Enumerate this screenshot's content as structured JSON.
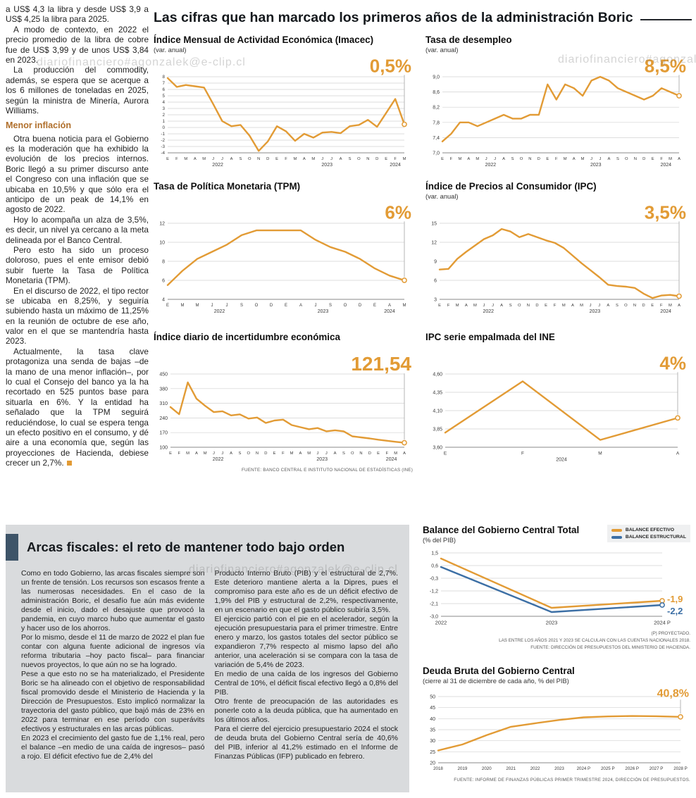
{
  "meta": {
    "watermark": "diariofinanciero#agonzalek@e-clip.cl"
  },
  "colors": {
    "orange": "#e29b35",
    "blue": "#3c6fa5",
    "heading_brown": "#b06f2b",
    "accent_dark": "#3e5468",
    "box_gray": "#d9dbdd"
  },
  "headline": "Las cifras que han marcado los primeros años de la administración Boric",
  "left_article": {
    "paragraphs_top": [
      "a US$ 4,3 la libra y desde US$ 3,9 a US$ 4,25 la libra para 2025.",
      "A modo de contexto, en 2022 el precio promedio de la libra de cobre fue de US$ 3,99 y de unos US$ 3,84 en 2023.",
      "La producción del commodity, además, se espera que se acerque a los 6 millones de toneladas en 2025, según la ministra de Minería, Aurora Williams."
    ],
    "subheading": "Menor inflación",
    "paragraphs_bottom": [
      "Otra buena noticia para el Gobierno es la moderación que ha exhibido la evolución de los precios internos. Boric llegó a su primer discurso ante el Congreso con una inflación que se ubicaba en 10,5% y que sólo era el anticipo de un peak de 14,1% en agosto de 2022.",
      "Hoy lo acompaña un alza de 3,5%, es decir, un nivel ya cercano a la meta delineada por el Banco Central.",
      "Pero esto ha sido un proceso doloroso, pues el ente emisor debió subir fuerte la Tasa de Política Monetaria (TPM).",
      "En el discurso de 2022, el tipo rector se ubicaba en 8,25%, y seguiría subiendo hasta un máximo de 11,25% en la reunión de octubre de ese año, valor en el que se mantendría hasta 2023.",
      "Actualmente, la tasa clave protagoniza una senda de bajas –de la mano de una menor inflación–, por lo cual el Consejo del banco ya la ha recortado en 525 puntos base para situarla en 6%. Y la entidad ha señalado que la TPM seguirá reduciéndose, lo cual se espera tenga un efecto positivo en el consumo, y dé aire a una economía que, según las proyecciones de Hacienda, debiese crecer un 2,7%."
    ]
  },
  "fiscal": {
    "title": "Arcas fiscales: el reto de mantener todo bajo orden",
    "col1": [
      "Como en todo Gobierno, las arcas fiscales siempre son un frente de tensión. Los recursos son escasos frente a las numerosas necesidades. En el caso de la administración Boric, el desafío fue aún más evidente desde el inicio, dado el desajuste que provocó la pandemia, en cuyo marco hubo que aumentar el gasto y hacer uso de los ahorros.",
      "Por lo mismo, desde el 11 de marzo de 2022 el plan fue contar con alguna fuente adicional de ingresos vía reforma tributaria –hoy pacto fiscal– para financiar nuevos proyectos, lo que aún no se ha logrado.",
      "Pese a que esto no se ha materializado, el Presidente Boric se ha alineado con el objetivo de responsabilidad fiscal promovido desde el Ministerio de Hacienda y la Dirección de Presupuestos. Esto implicó normalizar la trayectoria del gasto público, que bajó más de 23% en 2022 para terminar en ese período con superávits efectivos y estructurales en las arcas públicas.",
      "En 2023 el crecimiento del gasto fue de 1,1% real, pero el balance –en medio de una caída de ingresos– pasó a rojo. El déficit efectivo fue de 2,4% del"
    ],
    "col2": [
      "Producto Interno Bruto (PIB) y el estructural de 2,7%. Este deterioro mantiene alerta a la Dipres, pues el compromiso para este año es de un déficit efectivo de 1,9% del PIB y estructural de 2,2%, respectivamente, en un escenario en que el gasto público subiría 3,5%.",
      "El ejercicio partió con el pie en el acelerador, según la ejecución presupuestaria para el primer trimestre. Entre enero y marzo, los gastos totales del sector público se expandieron 7,7% respecto al mismo lapso del año anterior, una aceleración si se compara con la tasa de variación de 5,4% de 2023.",
      "En medio de una caída de los ingresos del Gobierno Central de 10%, el déficit fiscal efectivo llegó a 0,8% del PIB.",
      "Otro frente de preocupación de las autoridades es ponerle coto a la deuda pública, que ha aumentado en los últimos años.",
      "Para el cierre del ejercicio presupuestario 2024 el stock de deuda bruta del Gobierno Central sería de 40,6% del PIB, inferior al 41,2% estimado en el Informe de Finanzas Públicas (IFP) publicado en febrero."
    ]
  },
  "chart_data": [
    {
      "id": "imacec",
      "type": "line",
      "title": "Índice Mensual de Actividad Económica (Imacec)",
      "subtitle": "(var. anual)",
      "big_label": "0,5%",
      "ylim": [
        -4,
        8
      ],
      "yticks": [
        [
          8,
          "8"
        ],
        [
          7,
          "7"
        ],
        [
          6,
          "6"
        ],
        [
          5,
          "5"
        ],
        [
          4,
          "4"
        ],
        [
          3,
          "3"
        ],
        [
          2,
          "2"
        ],
        [
          1,
          "1"
        ],
        [
          0,
          "0"
        ],
        [
          -1,
          "-1"
        ],
        [
          -2,
          "-2"
        ],
        [
          -3,
          "-3"
        ],
        [
          -4,
          "-4"
        ]
      ],
      "xlabels": [
        "E",
        "F",
        "M",
        "A",
        "M",
        "J",
        "J",
        "A",
        "S",
        "O",
        "N",
        "D",
        "E",
        "F",
        "M",
        "A",
        "M",
        "J",
        "J",
        "A",
        "S",
        "O",
        "N",
        "D",
        "E",
        "F",
        "M"
      ],
      "years": [
        {
          "label": "2022",
          "from": 0,
          "to": 11
        },
        {
          "label": "2023",
          "from": 12,
          "to": 23
        },
        {
          "label": "2024",
          "from": 24,
          "to": 26
        }
      ],
      "series": [
        {
          "name": "imacec",
          "color": "orange",
          "values": [
            7.8,
            6.4,
            6.7,
            6.5,
            6.3,
            3.7,
            1.0,
            0.2,
            0.4,
            -1.3,
            -3.7,
            -2.2,
            0.2,
            -0.6,
            -2.1,
            -1.0,
            -1.6,
            -0.8,
            -0.7,
            -0.9,
            0.2,
            0.4,
            1.2,
            0.1,
            2.3,
            4.5,
            0.5
          ]
        }
      ]
    },
    {
      "id": "desempleo",
      "type": "line",
      "title": "Tasa de desempleo",
      "subtitle": "(var. anual)",
      "big_label": "8,5%",
      "ylim": [
        7.0,
        9.0
      ],
      "yticks": [
        [
          9.0,
          "9,0"
        ],
        [
          8.6,
          "8,6"
        ],
        [
          8.2,
          "8,2"
        ],
        [
          7.8,
          "7,8"
        ],
        [
          7.4,
          "7,4"
        ],
        [
          7.0,
          "7,0"
        ]
      ],
      "xlabels": [
        "E",
        "F",
        "M",
        "A",
        "M",
        "J",
        "J",
        "A",
        "S",
        "O",
        "N",
        "D",
        "E",
        "F",
        "M",
        "A",
        "M",
        "J",
        "J",
        "A",
        "S",
        "O",
        "N",
        "D",
        "E",
        "F",
        "M",
        "A"
      ],
      "years": [
        {
          "label": "2022",
          "from": 0,
          "to": 11
        },
        {
          "label": "2023",
          "from": 12,
          "to": 23
        },
        {
          "label": "2024",
          "from": 24,
          "to": 27
        }
      ],
      "series": [
        {
          "name": "desempleo",
          "color": "orange",
          "values": [
            7.3,
            7.5,
            7.8,
            7.8,
            7.7,
            7.8,
            7.9,
            8.0,
            7.9,
            7.9,
            8.0,
            8.0,
            8.8,
            8.4,
            8.8,
            8.7,
            8.5,
            8.9,
            9.0,
            8.9,
            8.7,
            8.6,
            8.5,
            8.4,
            8.5,
            8.7,
            8.6,
            8.5
          ]
        }
      ]
    },
    {
      "id": "tpm",
      "type": "line",
      "title": "Tasa de Política Monetaria (TPM)",
      "subtitle": "",
      "big_label": "6%",
      "ylim": [
        4,
        12
      ],
      "yticks": [
        [
          12,
          "12"
        ],
        [
          10,
          "10"
        ],
        [
          8,
          "8"
        ],
        [
          6,
          "6"
        ],
        [
          4,
          "4"
        ]
      ],
      "xlabels": [
        "E",
        "M",
        "M",
        "J",
        "J",
        "S",
        "O",
        "D",
        "E",
        "A",
        "J",
        "S",
        "O",
        "D",
        "E",
        "A",
        "M"
      ],
      "years": [
        {
          "label": "2022",
          "from": 0,
          "to": 7
        },
        {
          "label": "2023",
          "from": 8,
          "to": 13
        },
        {
          "label": "2024",
          "from": 14,
          "to": 16
        }
      ],
      "series": [
        {
          "name": "tpm",
          "color": "orange",
          "values": [
            5.5,
            7.0,
            8.25,
            9.0,
            9.75,
            10.75,
            11.25,
            11.25,
            11.25,
            11.25,
            10.25,
            9.5,
            9.0,
            8.25,
            7.25,
            6.5,
            6.0
          ]
        }
      ]
    },
    {
      "id": "ipc",
      "type": "line",
      "title": "Índice de Precios al Consumidor (IPC)",
      "subtitle": "(var. anual)",
      "big_label": "3,5%",
      "ylim": [
        3,
        15
      ],
      "yticks": [
        [
          15,
          "15"
        ],
        [
          12,
          "12"
        ],
        [
          9,
          "9"
        ],
        [
          6,
          "6"
        ],
        [
          3,
          "3"
        ]
      ],
      "xlabels": [
        "E",
        "F",
        "M",
        "A",
        "M",
        "J",
        "J",
        "A",
        "S",
        "O",
        "N",
        "D",
        "E",
        "F",
        "M",
        "A",
        "M",
        "J",
        "J",
        "A",
        "S",
        "O",
        "N",
        "D",
        "E",
        "F",
        "M",
        "A"
      ],
      "years": [
        {
          "label": "2022",
          "from": 0,
          "to": 11
        },
        {
          "label": "2023",
          "from": 12,
          "to": 23
        },
        {
          "label": "2024",
          "from": 24,
          "to": 27
        }
      ],
      "series": [
        {
          "name": "ipc",
          "color": "orange",
          "values": [
            7.7,
            7.8,
            9.4,
            10.5,
            11.5,
            12.5,
            13.1,
            14.1,
            13.7,
            12.8,
            13.3,
            12.8,
            12.3,
            11.9,
            11.1,
            9.9,
            8.7,
            7.6,
            6.5,
            5.3,
            5.1,
            5.0,
            4.8,
            3.9,
            3.2,
            3.6,
            3.7,
            3.5
          ]
        }
      ]
    },
    {
      "id": "incertidumbre",
      "type": "line",
      "title": "Índice diario de incertidumbre económica",
      "subtitle": "",
      "big_label": "121,54",
      "ylim": [
        100,
        450
      ],
      "yticks": [
        [
          450,
          "450"
        ],
        [
          380,
          "380"
        ],
        [
          310,
          "310"
        ],
        [
          240,
          "240"
        ],
        [
          170,
          "170"
        ],
        [
          100,
          "100"
        ]
      ],
      "xlabels": [
        "E",
        "F",
        "M",
        "A",
        "M",
        "J",
        "J",
        "A",
        "S",
        "O",
        "N",
        "D",
        "E",
        "F",
        "M",
        "A",
        "M",
        "J",
        "J",
        "A",
        "S",
        "O",
        "N",
        "D",
        "E",
        "F",
        "M",
        "A"
      ],
      "years": [
        {
          "label": "2022",
          "from": 0,
          "to": 11
        },
        {
          "label": "2023",
          "from": 12,
          "to": 23
        },
        {
          "label": "2024",
          "from": 24,
          "to": 27
        }
      ],
      "series": [
        {
          "name": "incertidumbre",
          "color": "orange",
          "values": [
            292,
            258,
            410,
            332,
            298,
            268,
            272,
            252,
            257,
            237,
            242,
            216,
            228,
            232,
            206,
            196,
            186,
            192,
            176,
            181,
            176,
            152,
            147,
            142,
            136,
            131,
            126,
            121.54
          ]
        }
      ],
      "source": "FUENTE: BANCO CENTRAL E INSTITUTO NACIONAL DE ESTADÍSTICAS (INE)"
    },
    {
      "id": "ipc-empalmado",
      "type": "line",
      "title": "IPC serie empalmada del INE",
      "subtitle": "",
      "big_label": "4%",
      "ylim": [
        3.6,
        4.6
      ],
      "yticks": [
        [
          4.6,
          "4,60"
        ],
        [
          4.35,
          "4,35"
        ],
        [
          4.1,
          "4,10"
        ],
        [
          3.85,
          "3,85"
        ],
        [
          3.6,
          "3,60"
        ]
      ],
      "xlabels": [
        "E",
        "F",
        "M",
        "A"
      ],
      "years": [
        {
          "label": "2024",
          "from": 0,
          "to": 3
        }
      ],
      "series": [
        {
          "name": "ipc_empalmado",
          "color": "orange",
          "values": [
            3.8,
            4.5,
            3.7,
            4.0
          ]
        }
      ]
    },
    {
      "id": "balance",
      "type": "line",
      "title": "Balance del Gobierno Central Total",
      "subtitle": "(% del PIB)",
      "ylim": [
        -3.0,
        1.5
      ],
      "yticks": [
        [
          1.5,
          "1,5"
        ],
        [
          0.6,
          "0,6"
        ],
        [
          -0.3,
          "-0,3"
        ],
        [
          -1.2,
          "-1,2"
        ],
        [
          -2.1,
          "-2,1"
        ],
        [
          -3.0,
          "-3,0"
        ]
      ],
      "xlabels": [
        "2022",
        "2023",
        "2024 P"
      ],
      "years": [],
      "legend": [
        {
          "label": "BALANCE EFECTIVO",
          "color": "orange"
        },
        {
          "label": "BALANCE ESTRUCTURAL",
          "color": "blue"
        }
      ],
      "series": [
        {
          "name": "balance_efectivo",
          "color": "orange",
          "values": [
            1.1,
            -2.4,
            -1.9
          ]
        },
        {
          "name": "balance_estructural",
          "color": "blue",
          "values": [
            0.5,
            -2.7,
            -2.2
          ]
        }
      ],
      "end_labels": [
        "-1,9",
        "-2,2"
      ],
      "end_label_dy": [
        -2,
        9
      ],
      "notes": [
        "(P) PROYECTADO.",
        "LAS ENTRE LOS AÑOS 2021 Y 2023 SE CALCULAN  CON LAS CUENTAS NACIONALES 2018.",
        "FUENTE: DIRECCIÓN DE PRESUPUESTOS DEL MINISTERIO DE HACIENDA."
      ]
    },
    {
      "id": "deuda",
      "type": "line",
      "title": "Deuda Bruta del Gobierno Central",
      "subtitle": "(cierre al 31 de diciembre de cada año, % del PIB)",
      "big_label": "40,8%",
      "ylim": [
        20,
        50
      ],
      "yticks": [
        [
          50,
          "50"
        ],
        [
          45,
          "45"
        ],
        [
          40,
          "40"
        ],
        [
          35,
          "35"
        ],
        [
          30,
          "30"
        ],
        [
          25,
          "25"
        ],
        [
          20,
          "20"
        ]
      ],
      "xlabels": [
        "2018",
        "2019",
        "2020",
        "2021",
        "2022",
        "2023",
        "2024 P",
        "2025 P",
        "2026 P",
        "2027 P",
        "2028 P"
      ],
      "years": [],
      "series": [
        {
          "name": "deuda_bruta",
          "color": "orange",
          "values": [
            25.6,
            28.3,
            32.5,
            36.3,
            37.9,
            39.4,
            40.6,
            41.0,
            41.2,
            41.1,
            40.8
          ]
        }
      ],
      "source": "FUENTE: INFORME DE FINANZAS PÚBLICAS PRIMER TRIMESTRE 2024, DIRECCIÓN DE PRESUPUESTOS."
    }
  ]
}
